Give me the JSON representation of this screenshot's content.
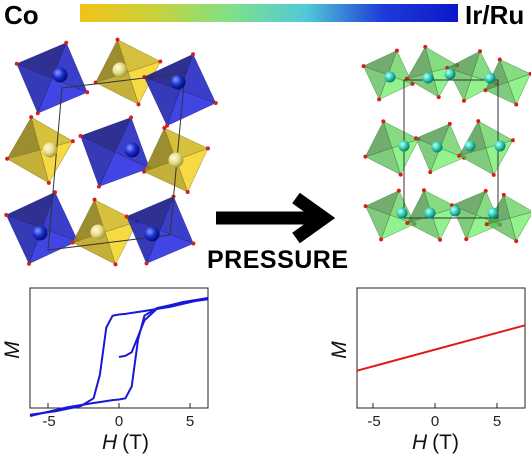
{
  "colorbar": {
    "left_label": "Co",
    "right_label": "Ir/Ru",
    "stops": [
      "#f2c218",
      "#c8d23a",
      "#7fe08a",
      "#4fc9d8",
      "#1f3bd8",
      "#0b18c8"
    ]
  },
  "arrow": {
    "label": "PRESSURE"
  },
  "colors": {
    "co_octahedra": "#d4bb2c",
    "ir_octahedra": "#2a2ec4",
    "high_pressure_octahedra": "#5fcf5a",
    "atom_blue": "#1a2ed0",
    "atom_yellow": "#e8df8a",
    "atom_cyan": "#2fd0b8",
    "oxygen": "#d42020"
  },
  "chart_data": [
    {
      "type": "line",
      "xlabel_italic": "H",
      "xlabel_unit": "(T)",
      "ylabel_italic": "M",
      "xlim": [
        -7,
        7
      ],
      "ylim": [
        -1,
        1
      ],
      "x_ticks": [
        "-5",
        "0",
        "5"
      ],
      "series": [
        {
          "color": "#1818d8",
          "upper_branch_x": [
            7,
            4,
            2,
            0.5,
            0,
            -0.5,
            -1,
            -1.5,
            -2,
            -3,
            -5,
            -7
          ],
          "upper_branch_y": [
            1.0,
            0.85,
            0.78,
            0.73,
            0.72,
            0.7,
            0.5,
            -0.3,
            -0.7,
            -0.83,
            -0.92,
            -0.98
          ],
          "lower_branch_x": [
            -7,
            -4,
            -2,
            -0.5,
            0,
            0.5,
            1,
            1.5,
            2,
            3,
            5,
            7
          ],
          "lower_branch_y": [
            -1.0,
            -0.85,
            -0.78,
            -0.73,
            -0.72,
            -0.7,
            -0.5,
            0.3,
            0.7,
            0.83,
            0.92,
            0.98
          ],
          "virgin_x": [
            0,
            0.5,
            1,
            1.5,
            2,
            3,
            5,
            7
          ],
          "virgin_y": [
            0,
            0.02,
            0.08,
            0.35,
            0.62,
            0.82,
            0.93,
            1.0
          ]
        }
      ]
    },
    {
      "type": "line",
      "xlabel_italic": "H",
      "xlabel_unit": "(T)",
      "ylabel_italic": "M",
      "xlim": [
        -7,
        7
      ],
      "ylim": [
        -1,
        1
      ],
      "x_ticks": [
        "-5",
        "0",
        "5"
      ],
      "series": [
        {
          "color": "#e01818",
          "x": [
            -7,
            7
          ],
          "y": [
            -0.42,
            0.42
          ]
        }
      ]
    }
  ]
}
